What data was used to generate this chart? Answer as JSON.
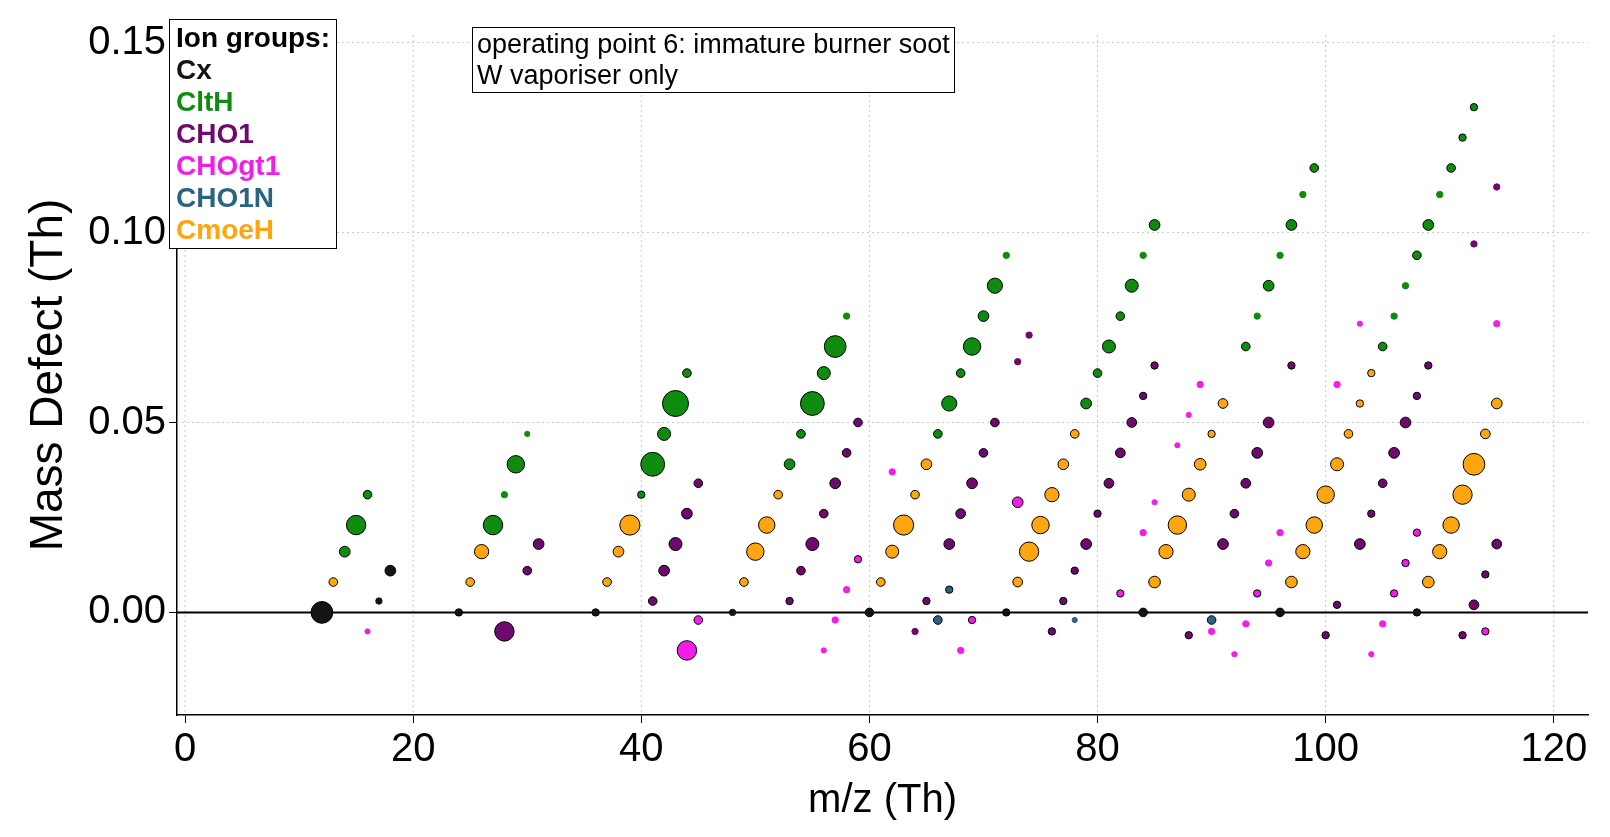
{
  "chart_data": {
    "type": "bubble",
    "xlabel": "m/z (Th)",
    "ylabel": "Mass Defect (Th)",
    "legend_title": "Ion groups:",
    "legend": "top left",
    "grid": true,
    "annotations": [
      "operating point 6: immature burner soot",
      "W vaporiser only"
    ],
    "xlim": [
      -0.7,
      123
    ],
    "xticks": [
      0,
      20,
      40,
      60,
      80,
      100,
      120
    ],
    "ylim": [
      -0.027,
      0.152
    ],
    "yticks": [
      {
        "value": 0,
        "label": "0.00"
      },
      {
        "value": 0.05,
        "label": "0.05"
      },
      {
        "value": 0.1,
        "label": "0.10"
      },
      {
        "value": 0.15,
        "label": "0.15"
      }
    ],
    "ref_lines": [
      {
        "axis": "y",
        "value": 0,
        "color": "#000000"
      }
    ],
    "series": [
      {
        "name": "Cx",
        "color": "#141414",
        "x": [
          12,
          17,
          18,
          24,
          36,
          48,
          60,
          72,
          84,
          96,
          108
        ],
        "values": [
          0,
          0.003,
          0.011,
          0,
          0,
          0,
          0,
          0,
          0,
          0,
          0
        ],
        "sizes": [
          0.7,
          0.06,
          0.17,
          0.08,
          0.08,
          0.06,
          0.11,
          0.08,
          0.11,
          0.11,
          0.08
        ]
      },
      {
        "name": "CltH",
        "color": "#0f8c0f",
        "x": [
          14,
          15,
          16,
          27,
          28,
          29,
          30,
          40,
          41,
          42,
          43,
          44,
          53,
          54,
          55,
          56,
          57,
          58,
          66,
          67,
          68,
          69,
          70,
          71,
          72,
          79,
          80,
          81,
          82,
          83,
          84,
          85,
          93,
          94,
          95,
          96,
          97,
          98,
          99,
          105,
          106,
          107,
          108,
          109,
          110,
          111,
          112,
          113
        ],
        "values": [
          0.016,
          0.023,
          0.031,
          0.023,
          0.031,
          0.039,
          0.047,
          0.031,
          0.039,
          0.047,
          0.055,
          0.063,
          0.039,
          0.047,
          0.055,
          0.063,
          0.07,
          0.078,
          0.047,
          0.055,
          0.063,
          0.07,
          0.078,
          0.086,
          0.094,
          0.055,
          0.063,
          0.07,
          0.078,
          0.086,
          0.094,
          0.102,
          0.07,
          0.078,
          0.086,
          0.094,
          0.102,
          0.11,
          0.117,
          0.07,
          0.078,
          0.086,
          0.094,
          0.102,
          0.11,
          0.117,
          0.125,
          0.133
        ],
        "sizes": [
          0.17,
          0.56,
          0.11,
          0.56,
          0.06,
          0.45,
          0.04,
          0.08,
          0.84,
          0.25,
          1,
          0.11,
          0.17,
          0.11,
          0.84,
          0.25,
          0.7,
          0.06,
          0.11,
          0.34,
          0.11,
          0.45,
          0.17,
          0.34,
          0.06,
          0.17,
          0.11,
          0.25,
          0.11,
          0.25,
          0.06,
          0.17,
          0.11,
          0.06,
          0.17,
          0.06,
          0.17,
          0.06,
          0.11,
          0.11,
          0.06,
          0.06,
          0.11,
          0.17,
          0.06,
          0.11,
          0.08,
          0.08
        ]
      },
      {
        "name": "CHO1",
        "color": "#6e0a6e",
        "x": [
          28,
          30,
          31,
          41,
          42,
          43,
          44,
          45,
          53,
          54,
          55,
          56,
          57,
          58,
          59,
          64,
          65,
          67,
          68,
          69,
          70,
          71,
          73,
          74,
          76,
          77,
          78,
          79,
          80,
          81,
          82,
          83,
          84,
          85,
          88,
          91,
          92,
          93,
          94,
          95,
          97,
          100,
          101,
          103,
          104,
          105,
          106,
          107,
          108,
          109,
          112,
          113,
          114,
          115,
          113,
          115
        ],
        "values": [
          -0.005,
          0.011,
          0.018,
          0.003,
          0.011,
          0.018,
          0.026,
          0.034,
          0.003,
          0.011,
          0.018,
          0.026,
          0.034,
          0.042,
          0.05,
          -0.005,
          0.003,
          0.018,
          0.026,
          0.034,
          0.042,
          0.05,
          0.066,
          0.073,
          -0.005,
          0.003,
          0.011,
          0.018,
          0.026,
          0.034,
          0.042,
          0.05,
          0.057,
          0.065,
          -0.006,
          0.018,
          0.026,
          0.034,
          0.042,
          0.05,
          0.065,
          -0.006,
          0.002,
          0.018,
          0.026,
          0.034,
          0.042,
          0.05,
          0.057,
          0.065,
          -0.006,
          0.002,
          0.01,
          0.018,
          0.097,
          0.112
        ],
        "sizes": [
          0.56,
          0.11,
          0.17,
          0.11,
          0.17,
          0.25,
          0.17,
          0.11,
          0.08,
          0.11,
          0.25,
          0.11,
          0.17,
          0.11,
          0.11,
          0.06,
          0.08,
          0.17,
          0.14,
          0.17,
          0.11,
          0.11,
          0.06,
          0.06,
          0.08,
          0.08,
          0.08,
          0.17,
          0.08,
          0.14,
          0.14,
          0.14,
          0.08,
          0.08,
          0.08,
          0.17,
          0.11,
          0.14,
          0.17,
          0.17,
          0.08,
          0.08,
          0.08,
          0.17,
          0.08,
          0.11,
          0.17,
          0.17,
          0.08,
          0.08,
          0.08,
          0.14,
          0.08,
          0.14,
          0.06,
          0.06
        ]
      },
      {
        "name": "CHOgt1",
        "color": "#f01ee6",
        "x": [
          16,
          44,
          45,
          56,
          57,
          58,
          59,
          62,
          68,
          69,
          73,
          82,
          84,
          85,
          87,
          88,
          89,
          90,
          92,
          93,
          94,
          95,
          96,
          101,
          103,
          104,
          105,
          106,
          107,
          108,
          114,
          115
        ],
        "values": [
          -0.005,
          -0.01,
          -0.002,
          -0.01,
          -0.002,
          0.006,
          0.014,
          0.037,
          -0.01,
          -0.002,
          0.029,
          0.005,
          0.021,
          0.029,
          0.044,
          0.052,
          0.06,
          -0.005,
          -0.011,
          -0.003,
          0.005,
          0.013,
          0.021,
          0.06,
          0.076,
          -0.011,
          -0.003,
          0.005,
          0.013,
          0.021,
          -0.005,
          0.076
        ],
        "sizes": [
          0.04,
          0.56,
          0.11,
          0.04,
          0.06,
          0.06,
          0.08,
          0.06,
          0.06,
          0.08,
          0.17,
          0.08,
          0.06,
          0.04,
          0.04,
          0.04,
          0.06,
          0.06,
          0.04,
          0.06,
          0.08,
          0.06,
          0.06,
          0.06,
          0.04,
          0.04,
          0.06,
          0.08,
          0.08,
          0.08,
          0.08,
          0.06
        ]
      },
      {
        "name": "CHO1N",
        "color": "#2a6482",
        "x": [
          66,
          67,
          78,
          90
        ],
        "values": [
          -0.002,
          0.006,
          -0.002,
          -0.002
        ],
        "sizes": [
          0.11,
          0.08,
          0.04,
          0.11
        ]
      },
      {
        "name": "CmoeH",
        "color": "#ffa510",
        "x": [
          13,
          25,
          26,
          37,
          38,
          39,
          49,
          50,
          51,
          52,
          61,
          62,
          63,
          64,
          65,
          73,
          74,
          75,
          76,
          77,
          78,
          85,
          86,
          87,
          88,
          89,
          90,
          91,
          97,
          98,
          99,
          100,
          101,
          102,
          103,
          104,
          109,
          110,
          111,
          112,
          113,
          114,
          115
        ],
        "values": [
          0.008,
          0.008,
          0.016,
          0.008,
          0.016,
          0.023,
          0.008,
          0.016,
          0.023,
          0.031,
          0.008,
          0.016,
          0.023,
          0.031,
          0.039,
          0.008,
          0.016,
          0.023,
          0.031,
          0.039,
          0.047,
          0.008,
          0.016,
          0.023,
          0.031,
          0.039,
          0.047,
          0.055,
          0.008,
          0.016,
          0.023,
          0.031,
          0.039,
          0.047,
          0.055,
          0.063,
          0.008,
          0.016,
          0.023,
          0.031,
          0.039,
          0.047,
          0.055
        ],
        "sizes": [
          0.11,
          0.11,
          0.3,
          0.11,
          0.17,
          0.6,
          0.11,
          0.45,
          0.4,
          0.11,
          0.11,
          0.25,
          0.6,
          0.11,
          0.17,
          0.14,
          0.55,
          0.45,
          0.3,
          0.17,
          0.11,
          0.2,
          0.3,
          0.5,
          0.25,
          0.2,
          0.08,
          0.14,
          0.2,
          0.3,
          0.4,
          0.45,
          0.25,
          0.11,
          0.08,
          0.08,
          0.2,
          0.3,
          0.4,
          0.55,
          0.7,
          0.14,
          0.17
        ]
      }
    ]
  }
}
